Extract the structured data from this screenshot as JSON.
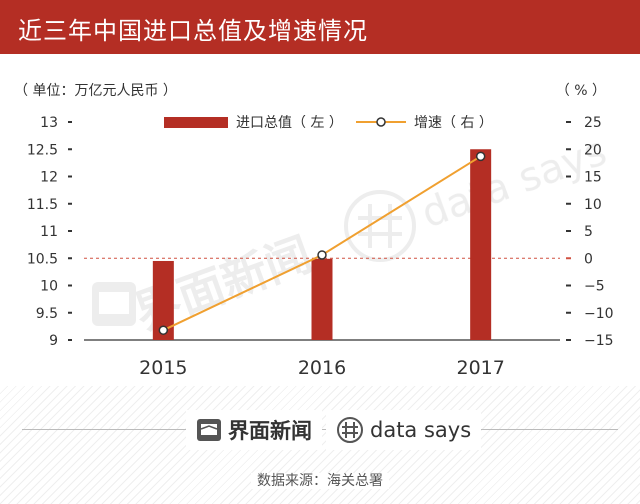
{
  "header": {
    "title": "近三年中国进口总值及增速情况"
  },
  "units": {
    "left": "（ 单位：万亿元人民币 ）",
    "right": "（ % ）"
  },
  "legend": {
    "bar": "进口总值（ 左 ）",
    "line": "增速（ 右 ）"
  },
  "watermark": {
    "brand_cn": "界面新闻",
    "brand_en": "data says"
  },
  "footer": {
    "brand_cn": "界面新闻",
    "brand_en": "data says",
    "source": "数据来源：海关总署"
  },
  "colors": {
    "title_bg": "#b42e24",
    "bar": "#b42e24",
    "line": "#f0a030",
    "zero_line": "#d05040"
  },
  "chart_data": {
    "type": "bar+line",
    "categories": [
      "2015",
      "2016",
      "2017"
    ],
    "series": [
      {
        "name": "进口总值（ 左 ）",
        "type": "bar",
        "axis": "left",
        "values": [
          10.45,
          10.49,
          12.5
        ]
      },
      {
        "name": "增速（ 右 ）",
        "type": "line",
        "axis": "right",
        "values": [
          -13.2,
          0.6,
          18.7
        ]
      }
    ],
    "y_left": {
      "min": 9,
      "max": 13,
      "ticks": [
        "9",
        "9.5",
        "10",
        "10.5",
        "11",
        "11.5",
        "12",
        "12.5",
        "13"
      ],
      "tick_values": [
        9,
        9.5,
        10,
        10.5,
        11,
        11.5,
        12,
        12.5,
        13
      ]
    },
    "y_right": {
      "min": -15,
      "max": 25,
      "ticks": [
        "−15",
        "−10",
        "−5",
        "0",
        "5",
        "10",
        "15",
        "20",
        "25"
      ],
      "tick_values": [
        -15,
        -10,
        -5,
        0,
        5,
        10,
        15,
        20,
        25
      ]
    }
  }
}
